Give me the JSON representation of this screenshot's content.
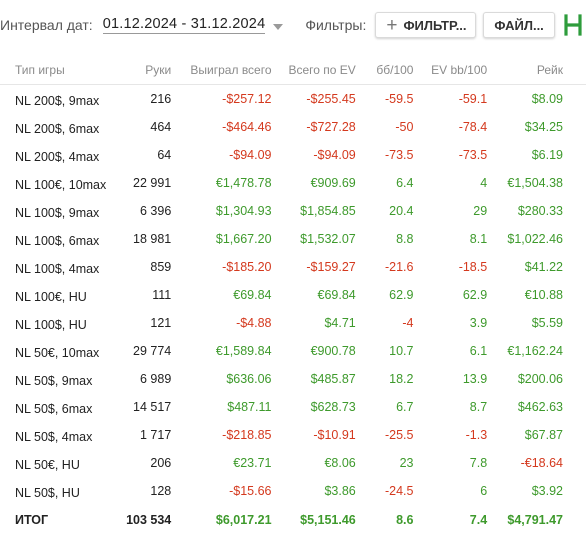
{
  "toolbar": {
    "date_label": "Интервал дат:",
    "date_range": "01.12.2024 - 31.12.2024",
    "filters_label": "Фильтры:",
    "filter_button": "ФИЛЬТР...",
    "file_button": "ФАЙЛ...",
    "extra_text": "(",
    "logo_color": "#2e9c3c"
  },
  "colors": {
    "negative": "#d4391e",
    "positive": "#3e9a2c"
  },
  "table": {
    "headers": [
      "Тип игры",
      "Руки",
      "Выиграл всего",
      "Всего по EV",
      "бб/100",
      "EV bb/100",
      "Рейк"
    ],
    "rows": [
      [
        "NL 200$, 9max",
        "216",
        "-$257.12",
        "-$255.45",
        "-59.5",
        "-59.1",
        "$8.09"
      ],
      [
        "NL 200$, 6max",
        "464",
        "-$464.46",
        "-$727.28",
        "-50",
        "-78.4",
        "$34.25"
      ],
      [
        "NL 200$, 4max",
        "64",
        "-$94.09",
        "-$94.09",
        "-73.5",
        "-73.5",
        "$6.19"
      ],
      [
        "NL 100€, 10max",
        "22 991",
        "€1,478.78",
        "€909.69",
        "6.4",
        "4",
        "€1,504.38"
      ],
      [
        "NL 100$, 9max",
        "6 396",
        "$1,304.93",
        "$1,854.85",
        "20.4",
        "29",
        "$280.33"
      ],
      [
        "NL 100$, 6max",
        "18 981",
        "$1,667.20",
        "$1,532.07",
        "8.8",
        "8.1",
        "$1,022.46"
      ],
      [
        "NL 100$, 4max",
        "859",
        "-$185.20",
        "-$159.27",
        "-21.6",
        "-18.5",
        "$41.22"
      ],
      [
        "NL 100€, HU",
        "111",
        "€69.84",
        "€69.84",
        "62.9",
        "62.9",
        "€10.88"
      ],
      [
        "NL 100$, HU",
        "121",
        "-$4.88",
        "$4.71",
        "-4",
        "3.9",
        "$5.59"
      ],
      [
        "NL 50€, 10max",
        "29 774",
        "€1,589.84",
        "€900.78",
        "10.7",
        "6.1",
        "€1,162.24"
      ],
      [
        "NL 50$, 9max",
        "6 989",
        "$636.06",
        "$485.87",
        "18.2",
        "13.9",
        "$200.06"
      ],
      [
        "NL 50$, 6max",
        "14 517",
        "$487.11",
        "$628.73",
        "6.7",
        "8.7",
        "$462.63"
      ],
      [
        "NL 50$, 4max",
        "1 717",
        "-$218.85",
        "-$10.91",
        "-25.5",
        "-1.3",
        "$67.87"
      ],
      [
        "NL 50€, HU",
        "206",
        "€23.71",
        "€8.06",
        "23",
        "7.8",
        "-€18.64"
      ],
      [
        "NL 50$, HU",
        "128",
        "-$15.66",
        "$3.86",
        "-24.5",
        "6",
        "$3.92"
      ]
    ],
    "total": [
      "ИТОГ",
      "103 534",
      "$6,017.21",
      "$5,151.46",
      "8.6",
      "7.4",
      "$4,791.47"
    ]
  }
}
